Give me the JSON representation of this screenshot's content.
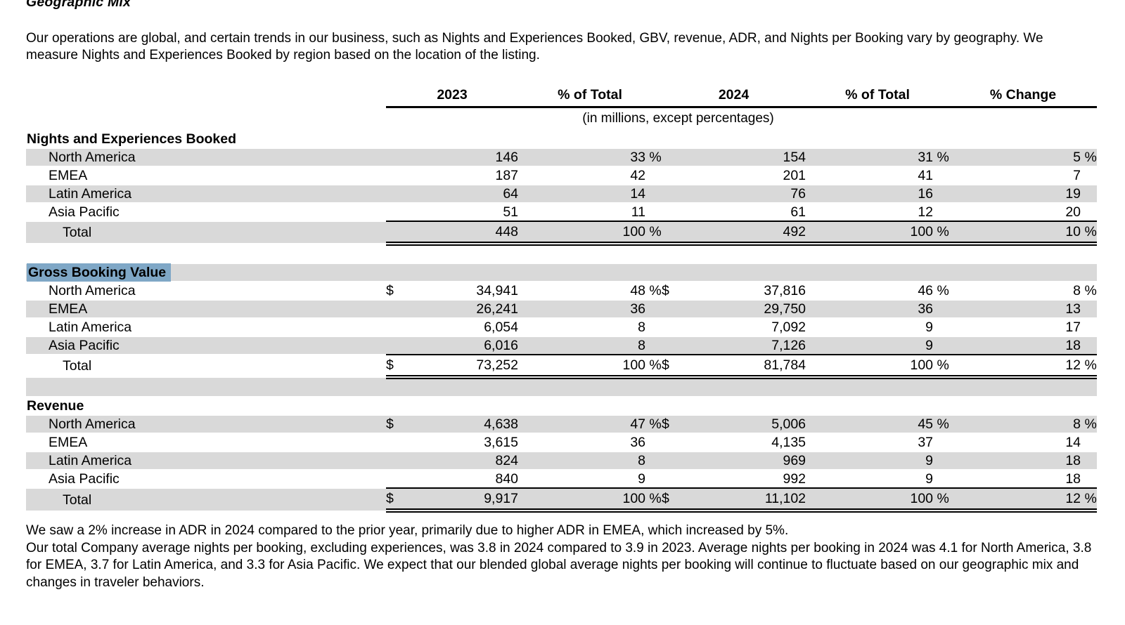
{
  "doc": {
    "title": "Geographic Mix",
    "intro": "Our operations are global, and certain trends in our business, such as Nights and Experiences Booked, GBV, revenue, ADR, and Nights per Booking vary by geography. We measure Nights and Experiences Booked by region based on the location of the listing.",
    "footnotes": [
      "We saw a 2% increase in ADR in 2024 compared to the prior year, primarily due to higher ADR in EMEA, which increased by 5%.",
      "Our total Company average nights per booking, excluding experiences, was 3.8 in 2024 compared to 3.9 in 2023. Average nights per booking in 2024 was 4.1 for North America, 3.8 for EMEA, 3.7 for Latin America, and 3.3 for Asia Pacific. We expect that our blended global average nights per booking will continue to fluctuate based on our geographic mix and changes in traveler behaviors."
    ]
  },
  "table": {
    "col_headers": [
      "2023",
      "% of Total",
      "2024",
      "% of Total",
      "% Change"
    ],
    "units_note": "(in millions, except percentages)",
    "sections": [
      {
        "title": "Nights and Experiences Booked",
        "title_highlighted": false,
        "rows": [
          {
            "label": "North America",
            "d2023": "",
            "v2023": "146",
            "p2023": "33 %",
            "d2024": "",
            "v2024": "154",
            "p2024": "31 %",
            "change": "5 %"
          },
          {
            "label": "EMEA",
            "d2023": "",
            "v2023": "187",
            "p2023": "42",
            "d2024": "",
            "v2024": "201",
            "p2024": "41",
            "change": "7"
          },
          {
            "label": "Latin America",
            "d2023": "",
            "v2023": "64",
            "p2023": "14",
            "d2024": "",
            "v2024": "76",
            "p2024": "16",
            "change": "19"
          },
          {
            "label": "Asia Pacific",
            "d2023": "",
            "v2023": "51",
            "p2023": "11",
            "d2024": "",
            "v2024": "61",
            "p2024": "12",
            "change": "20"
          }
        ],
        "total": {
          "label": "Total",
          "d2023": "",
          "v2023": "448",
          "p2023": "100 %",
          "d2024": "",
          "v2024": "492",
          "p2024": "100 %",
          "change": "10 %"
        }
      },
      {
        "title": "Gross Booking Value",
        "title_highlighted": true,
        "rows": [
          {
            "label": "North America",
            "d2023": "$",
            "v2023": "34,941",
            "p2023": "48 %",
            "d2024": "$",
            "v2024": "37,816",
            "p2024": "46 %",
            "change": "8 %"
          },
          {
            "label": "EMEA",
            "d2023": "",
            "v2023": "26,241",
            "p2023": "36",
            "d2024": "",
            "v2024": "29,750",
            "p2024": "36",
            "change": "13"
          },
          {
            "label": "Latin America",
            "d2023": "",
            "v2023": "6,054",
            "p2023": "8",
            "d2024": "",
            "v2024": "7,092",
            "p2024": "9",
            "change": "17"
          },
          {
            "label": "Asia Pacific",
            "d2023": "",
            "v2023": "6,016",
            "p2023": "8",
            "d2024": "",
            "v2024": "7,126",
            "p2024": "9",
            "change": "18"
          }
        ],
        "total": {
          "label": "Total",
          "d2023": "$",
          "v2023": "73,252",
          "p2023": "100 %",
          "d2024": "$",
          "v2024": "81,784",
          "p2024": "100 %",
          "change": "12 %"
        }
      },
      {
        "title": "Revenue",
        "title_highlighted": false,
        "rows": [
          {
            "label": "North America",
            "d2023": "$",
            "v2023": "4,638",
            "p2023": "47 %",
            "d2024": "$",
            "v2024": "5,006",
            "p2024": "45 %",
            "change": "8 %"
          },
          {
            "label": "EMEA",
            "d2023": "",
            "v2023": "3,615",
            "p2023": "36",
            "d2024": "",
            "v2024": "4,135",
            "p2024": "37",
            "change": "14"
          },
          {
            "label": "Latin America",
            "d2023": "",
            "v2023": "824",
            "p2023": "8",
            "d2024": "",
            "v2024": "969",
            "p2024": "9",
            "change": "18"
          },
          {
            "label": "Asia Pacific",
            "d2023": "",
            "v2023": "840",
            "p2023": "9",
            "d2024": "",
            "v2024": "992",
            "p2024": "9",
            "change": "18"
          }
        ],
        "total": {
          "label": "Total",
          "d2023": "$",
          "v2023": "9,917",
          "p2023": "100 %",
          "d2024": "$",
          "v2024": "11,102",
          "p2024": "100 %",
          "change": "12 %"
        }
      }
    ]
  },
  "colors": {
    "row_stripe": "#d9d9d9",
    "selection_highlight": "#7fa7c6",
    "rule": "#000000"
  }
}
